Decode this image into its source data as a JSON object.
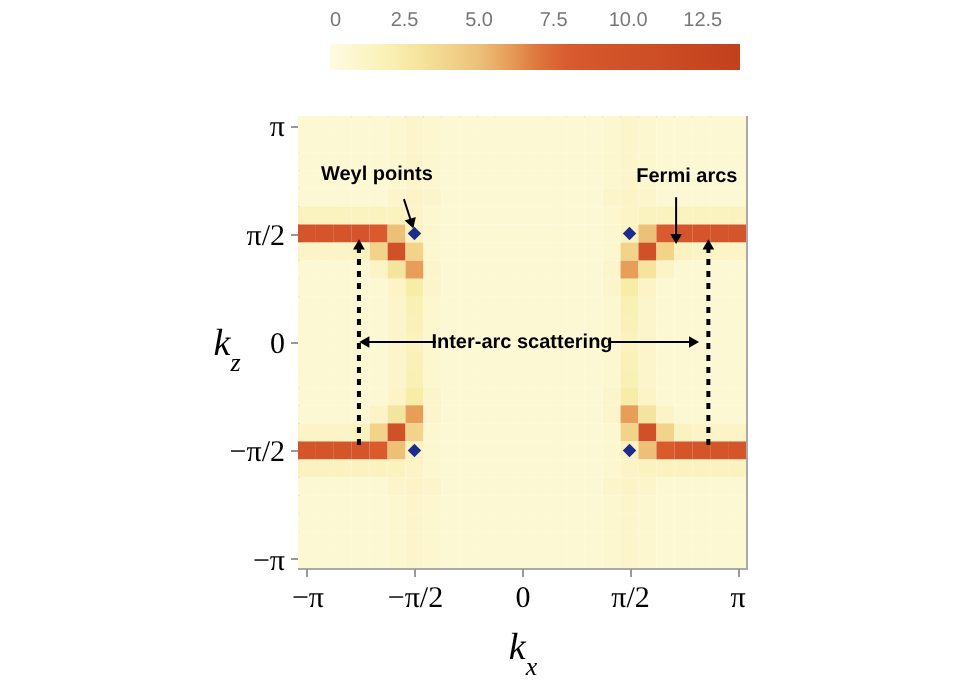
{
  "chart_data": {
    "type": "heatmap",
    "xlabel": "k$_{x}$",
    "ylabel": "k$_{z}$",
    "clim": [
      0,
      13.75
    ],
    "cticks": [
      0,
      {
        "value": 2.5,
        "label": "2.5"
      },
      {
        "value": 5,
        "label": "5.0"
      },
      {
        "value": 7.5,
        "label": "7.5"
      },
      {
        "value": 10,
        "label": "10.0"
      },
      {
        "value": 12.5,
        "label": "12.5"
      }
    ],
    "categories": [
      "−π",
      null,
      null,
      null,
      null,
      null,
      "−π/2",
      null,
      null,
      null,
      null,
      null,
      "0",
      null,
      null,
      null,
      null,
      null,
      "π/2",
      null,
      null,
      null,
      null,
      null,
      "π"
    ],
    "y_categories": [
      "π",
      null,
      null,
      null,
      null,
      null,
      "π/2",
      null,
      null,
      null,
      null,
      null,
      "0",
      null,
      null,
      null,
      null,
      null,
      "−π/2",
      null,
      null,
      null,
      null,
      null,
      "−π"
    ],
    "cells": [
      [
        0.6,
        0.6,
        0.6,
        0.6,
        0.6,
        0.8,
        1,
        0.8,
        0.6,
        0.6,
        0.6,
        0.6,
        0.6,
        0.6,
        0.6,
        0.6,
        0.6,
        0.8,
        1,
        0.8,
        0.6,
        0.6,
        0.6,
        0.6,
        0.6
      ],
      [
        0.6,
        0.6,
        0.6,
        0.6,
        0.6,
        0.8,
        1,
        0.8,
        0.6,
        0.6,
        0.6,
        0.6,
        0.6,
        0.6,
        0.6,
        0.6,
        0.6,
        0.8,
        1,
        0.8,
        0.6,
        0.6,
        0.6,
        0.6,
        0.6
      ],
      [
        0.6,
        0.6,
        0.6,
        0.6,
        0.6,
        0.8,
        1,
        0.8,
        0.6,
        0.6,
        0.6,
        0.6,
        0.6,
        0.6,
        0.6,
        0.6,
        0.6,
        0.8,
        1,
        0.8,
        0.6,
        0.6,
        0.6,
        0.6,
        0.6
      ],
      [
        0.6,
        0.6,
        0.6,
        0.6,
        0.6,
        0.8,
        1,
        0.8,
        0.6,
        0.6,
        0.6,
        0.6,
        0.6,
        0.6,
        0.6,
        0.6,
        0.6,
        0.8,
        1,
        0.8,
        0.6,
        0.6,
        0.6,
        0.6,
        0.6
      ],
      [
        0.6,
        0.6,
        0.6,
        0.6,
        0.6,
        1,
        1.2,
        1,
        0.6,
        0.6,
        0.6,
        0.6,
        0.6,
        0.6,
        0.6,
        0.6,
        0.6,
        1,
        1.2,
        1,
        0.6,
        0.6,
        0.6,
        0.6,
        0.6
      ],
      [
        1.5,
        1.5,
        1.5,
        1.5,
        1.5,
        1.5,
        1.2,
        0.8,
        0.6,
        0.6,
        0.6,
        0.6,
        0.6,
        0.6,
        0.6,
        0.6,
        0.6,
        0.8,
        1.2,
        1.5,
        1.5,
        1.5,
        1.5,
        1.5,
        1.5
      ],
      [
        9,
        9,
        9,
        9,
        8,
        5,
        1.5,
        0.8,
        0.6,
        0.6,
        0.6,
        0.6,
        0.6,
        0.6,
        0.6,
        0.6,
        0.6,
        0.8,
        1.5,
        5,
        8,
        9,
        9,
        9,
        9
      ],
      [
        1.2,
        1.2,
        1.2,
        1.5,
        4,
        10,
        4,
        0.8,
        0.6,
        0.6,
        0.6,
        0.6,
        0.6,
        0.6,
        0.6,
        0.6,
        0.6,
        0.8,
        4,
        10,
        4,
        1.5,
        1.2,
        1.2,
        1.2
      ],
      [
        0.6,
        0.6,
        0.6,
        0.6,
        1.2,
        3,
        6,
        1,
        0.6,
        0.6,
        0.6,
        0.6,
        0.6,
        0.6,
        0.6,
        0.6,
        0.6,
        1,
        6,
        3,
        1.2,
        0.6,
        0.6,
        0.6,
        0.6
      ],
      [
        0.6,
        0.6,
        0.6,
        0.6,
        0.6,
        1.2,
        2.5,
        1,
        0.6,
        0.6,
        0.6,
        0.6,
        0.6,
        0.6,
        0.6,
        0.6,
        0.6,
        1,
        2.5,
        1.2,
        0.6,
        0.6,
        0.6,
        0.6,
        0.6
      ],
      [
        0.6,
        0.6,
        0.6,
        0.6,
        0.6,
        1,
        2,
        0.8,
        0.6,
        0.6,
        0.6,
        0.6,
        0.6,
        0.6,
        0.6,
        0.6,
        0.6,
        0.8,
        2,
        1,
        0.6,
        0.6,
        0.6,
        0.6,
        0.6
      ],
      [
        0.6,
        0.6,
        0.6,
        0.6,
        0.6,
        1,
        1.8,
        0.8,
        0.6,
        0.6,
        0.6,
        0.6,
        0.6,
        0.6,
        0.6,
        0.6,
        0.6,
        0.8,
        1.8,
        1,
        0.6,
        0.6,
        0.6,
        0.6,
        0.6
      ],
      [
        0.6,
        0.6,
        0.6,
        0.6,
        0.6,
        1,
        1.6,
        0.8,
        0.6,
        0.6,
        0.6,
        0.6,
        0.6,
        0.6,
        0.6,
        0.6,
        0.6,
        0.8,
        1.6,
        1,
        0.6,
        0.6,
        0.6,
        0.6,
        0.6
      ],
      [
        0.6,
        0.6,
        0.6,
        0.6,
        0.6,
        1,
        1.8,
        0.8,
        0.6,
        0.6,
        0.6,
        0.6,
        0.6,
        0.6,
        0.6,
        0.6,
        0.6,
        0.8,
        1.8,
        1,
        0.6,
        0.6,
        0.6,
        0.6,
        0.6
      ],
      [
        0.6,
        0.6,
        0.6,
        0.6,
        0.6,
        1,
        2,
        0.8,
        0.6,
        0.6,
        0.6,
        0.6,
        0.6,
        0.6,
        0.6,
        0.6,
        0.6,
        0.8,
        2,
        1,
        0.6,
        0.6,
        0.6,
        0.6,
        0.6
      ],
      [
        0.6,
        0.6,
        0.6,
        0.6,
        0.6,
        1.2,
        2.5,
        1,
        0.6,
        0.6,
        0.6,
        0.6,
        0.6,
        0.6,
        0.6,
        0.6,
        0.6,
        1,
        2.5,
        1.2,
        0.6,
        0.6,
        0.6,
        0.6,
        0.6
      ],
      [
        0.6,
        0.6,
        0.6,
        0.6,
        1.2,
        3,
        6,
        1,
        0.6,
        0.6,
        0.6,
        0.6,
        0.6,
        0.6,
        0.6,
        0.6,
        0.6,
        1,
        6,
        3,
        1.2,
        0.6,
        0.6,
        0.6,
        0.6
      ],
      [
        1.2,
        1.2,
        1.2,
        1.5,
        4,
        10,
        4,
        0.8,
        0.6,
        0.6,
        0.6,
        0.6,
        0.6,
        0.6,
        0.6,
        0.6,
        0.6,
        0.8,
        4,
        10,
        4,
        1.5,
        1.2,
        1.2,
        1.2
      ],
      [
        9,
        9,
        9,
        9,
        8,
        5,
        1.5,
        0.8,
        0.6,
        0.6,
        0.6,
        0.6,
        0.6,
        0.6,
        0.6,
        0.6,
        0.6,
        0.8,
        1.5,
        5,
        8,
        9,
        9,
        9,
        9
      ],
      [
        1.5,
        1.5,
        1.5,
        1.5,
        1.5,
        1.5,
        1.2,
        0.8,
        0.6,
        0.6,
        0.6,
        0.6,
        0.6,
        0.6,
        0.6,
        0.6,
        0.6,
        0.8,
        1.2,
        1.5,
        1.5,
        1.5,
        1.5,
        1.5,
        1.5
      ],
      [
        0.6,
        0.6,
        0.6,
        0.6,
        0.6,
        1,
        1.2,
        1,
        0.6,
        0.6,
        0.6,
        0.6,
        0.6,
        0.6,
        0.6,
        0.6,
        0.6,
        1,
        1.2,
        1,
        0.6,
        0.6,
        0.6,
        0.6,
        0.6
      ],
      [
        0.6,
        0.6,
        0.6,
        0.6,
        0.6,
        0.8,
        1,
        0.8,
        0.6,
        0.6,
        0.6,
        0.6,
        0.6,
        0.6,
        0.6,
        0.6,
        0.6,
        0.8,
        1,
        0.8,
        0.6,
        0.6,
        0.6,
        0.6,
        0.6
      ],
      [
        0.6,
        0.6,
        0.6,
        0.6,
        0.6,
        0.8,
        1,
        0.8,
        0.6,
        0.6,
        0.6,
        0.6,
        0.6,
        0.6,
        0.6,
        0.6,
        0.6,
        0.8,
        1,
        0.8,
        0.6,
        0.6,
        0.6,
        0.6,
        0.6
      ],
      [
        0.6,
        0.6,
        0.6,
        0.6,
        0.6,
        0.8,
        1,
        0.8,
        0.6,
        0.6,
        0.6,
        0.6,
        0.6,
        0.6,
        0.6,
        0.6,
        0.6,
        0.8,
        1,
        0.8,
        0.6,
        0.6,
        0.6,
        0.6,
        0.6
      ],
      [
        0.6,
        0.6,
        0.6,
        0.6,
        0.6,
        0.8,
        1,
        0.8,
        0.6,
        0.6,
        0.6,
        0.6,
        0.6,
        0.6,
        0.6,
        0.6,
        0.6,
        0.8,
        1,
        0.8,
        0.6,
        0.6,
        0.6,
        0.6,
        0.6
      ]
    ],
    "annotations": [
      {
        "text": "Weyl points",
        "x": "−π/2",
        "y": "π/2"
      },
      "Fermi arcs",
      "Inter-arc scattering"
    ]
  }
}
